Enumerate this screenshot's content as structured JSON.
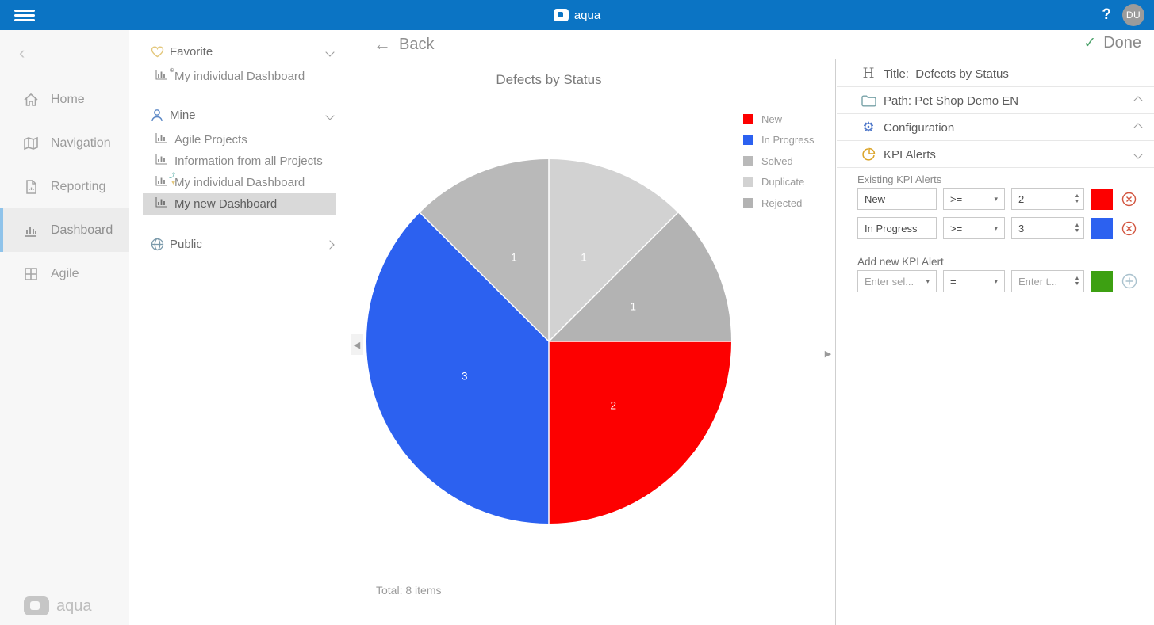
{
  "topbar": {
    "brand": "aqua",
    "help_label": "?",
    "avatar_initials": "DU"
  },
  "sidebar": {
    "items": [
      {
        "label": "Home"
      },
      {
        "label": "Navigation"
      },
      {
        "label": "Reporting"
      },
      {
        "label": "Dashboard"
      },
      {
        "label": "Agile"
      }
    ],
    "footer_brand": "aqua"
  },
  "explorer": {
    "sections": [
      {
        "label": "Favorite",
        "items": [
          {
            "label": "My individual Dashboard"
          }
        ]
      },
      {
        "label": "Mine",
        "items": [
          {
            "label": "Agile Projects"
          },
          {
            "label": "Information from all Projects"
          },
          {
            "label": "My individual Dashboard"
          },
          {
            "label": "My new Dashboard"
          }
        ]
      },
      {
        "label": "Public",
        "items": []
      }
    ]
  },
  "header": {
    "back_label": "Back",
    "done_label": "Done"
  },
  "chart_data": {
    "type": "pie",
    "title": "Defects by Status",
    "labels": [
      "New",
      "In Progress",
      "Solved",
      "Duplicate",
      "Rejected"
    ],
    "values": [
      2,
      3,
      1,
      1,
      1
    ],
    "colors": [
      "#fd0000",
      "#2c61f0",
      "#b9b9b9",
      "#d2d2d2",
      "#b3b3b3"
    ],
    "total_label": "Total: 8 items",
    "start_angle_deg": 90,
    "direction": "clockwise",
    "legend_position": "top-right",
    "slice_label_color": "#ffffff"
  },
  "config": {
    "title_label": "Title:",
    "title_value": "Defects by Status",
    "path_label": "Path: Pet Shop Demo EN",
    "configuration_label": "Configuration",
    "kpi_alerts_label": "KPI Alerts",
    "existing_alerts_label": "Existing KPI Alerts",
    "alerts": [
      {
        "field": "New",
        "operator": ">=",
        "value": "2",
        "color": "#fd0000"
      },
      {
        "field": "In Progress",
        "operator": ">=",
        "value": "3",
        "color": "#2c61f0"
      }
    ],
    "add_alert_label": "Add new KPI Alert",
    "add_alert": {
      "field_placeholder": "Enter sel...",
      "operator": "=",
      "value_placeholder": "Enter t...",
      "color": "#3da012"
    }
  },
  "icons": {
    "back_arrow": "←",
    "done_check": "✓",
    "carousel_left": "◀",
    "carousel_right": "▶",
    "spinner_up": "▲",
    "spinner_down": "▼",
    "select_caret": "▾",
    "gear": "⚙",
    "heading_h": "H",
    "collapse_left": "‹"
  }
}
